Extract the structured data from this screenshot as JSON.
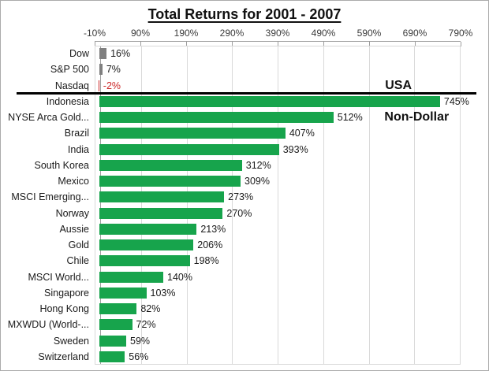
{
  "title": "Total Returns for 2001 - 2007",
  "colors": {
    "green": "#17a44c",
    "gray": "#7f7f7f",
    "red": "#cc2828",
    "grid": "#d9d9d9",
    "separator": "#000000",
    "value_text": "#1a1a1a",
    "negative_text": "#cc2828"
  },
  "chart_data": {
    "type": "bar",
    "orientation": "horizontal",
    "title": "Total Returns for 2001 - 2007",
    "xlim": [
      -10,
      790
    ],
    "grid": true,
    "ticks": [
      {
        "value": -10,
        "label": "-10%"
      },
      {
        "value": 90,
        "label": "90%"
      },
      {
        "value": 190,
        "label": "190%"
      },
      {
        "value": 290,
        "label": "290%"
      },
      {
        "value": 390,
        "label": "390%"
      },
      {
        "value": 490,
        "label": "490%"
      },
      {
        "value": 590,
        "label": "590%"
      },
      {
        "value": 690,
        "label": "690%"
      },
      {
        "value": 790,
        "label": "790%"
      }
    ],
    "bars": [
      {
        "label": "Dow",
        "value": 16,
        "display": "16%",
        "color": "gray"
      },
      {
        "label": "S&P 500",
        "value": 7,
        "display": "7%",
        "color": "gray"
      },
      {
        "label": "Nasdaq",
        "value": -2,
        "display": "-2%",
        "color": "red"
      },
      {
        "label": "Indonesia",
        "value": 745,
        "display": "745%",
        "color": "green"
      },
      {
        "label": "NYSE Arca Gold...",
        "value": 512,
        "display": "512%",
        "color": "green"
      },
      {
        "label": "Brazil",
        "value": 407,
        "display": "407%",
        "color": "green"
      },
      {
        "label": "India",
        "value": 393,
        "display": "393%",
        "color": "green"
      },
      {
        "label": "South Korea",
        "value": 312,
        "display": "312%",
        "color": "green"
      },
      {
        "label": "Mexico",
        "value": 309,
        "display": "309%",
        "color": "green"
      },
      {
        "label": "MSCI Emerging...",
        "value": 273,
        "display": "273%",
        "color": "green"
      },
      {
        "label": "Norway",
        "value": 270,
        "display": "270%",
        "color": "green"
      },
      {
        "label": "Aussie",
        "value": 213,
        "display": "213%",
        "color": "green"
      },
      {
        "label": "Gold",
        "value": 206,
        "display": "206%",
        "color": "green"
      },
      {
        "label": "Chile",
        "value": 198,
        "display": "198%",
        "color": "green"
      },
      {
        "label": "MSCI World...",
        "value": 140,
        "display": "140%",
        "color": "green"
      },
      {
        "label": "Singapore",
        "value": 103,
        "display": "103%",
        "color": "green"
      },
      {
        "label": "Hong Kong",
        "value": 82,
        "display": "82%",
        "color": "green"
      },
      {
        "label": "MXWDU (World-...",
        "value": 72,
        "display": "72%",
        "color": "green"
      },
      {
        "label": "Sweden",
        "value": 59,
        "display": "59%",
        "color": "green"
      },
      {
        "label": "Switzerland",
        "value": 56,
        "display": "56%",
        "color": "green"
      }
    ],
    "separator_after_row": 2,
    "annotations": [
      {
        "text": "USA",
        "row": 2,
        "x_pct": 83
      },
      {
        "text": "Non-Dollar",
        "row": 4,
        "x_pct": 88
      }
    ]
  }
}
